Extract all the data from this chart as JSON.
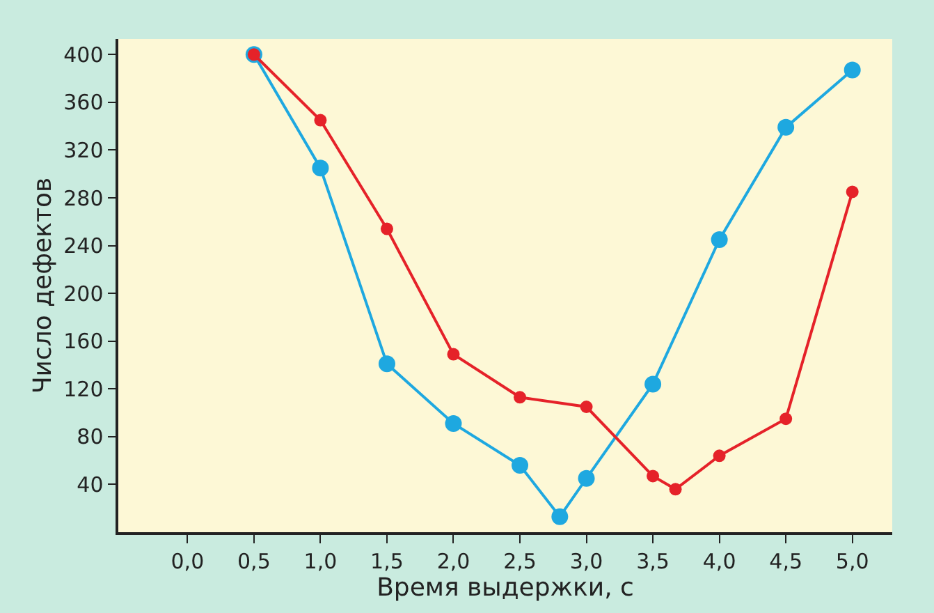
{
  "chart_data": {
    "type": "line",
    "xlabel": "Время выдержки, с",
    "ylabel": "Число дефектов",
    "xlim": [
      -0.52,
      5.3
    ],
    "ylim": [
      0,
      413
    ],
    "xticks": [
      {
        "value": 0,
        "label": "0,0"
      },
      {
        "value": 0.5,
        "label": "0,5"
      },
      {
        "value": 1,
        "label": "1,0"
      },
      {
        "value": 1.5,
        "label": "1,5"
      },
      {
        "value": 2,
        "label": "2,0"
      },
      {
        "value": 2.5,
        "label": "2,5"
      },
      {
        "value": 3,
        "label": "3,0"
      },
      {
        "value": 3.5,
        "label": "3,5"
      },
      {
        "value": 4,
        "label": "4,0"
      },
      {
        "value": 4.5,
        "label": "4,5"
      },
      {
        "value": 5,
        "label": "5,0"
      }
    ],
    "yticks": [
      40,
      80,
      120,
      160,
      200,
      240,
      280,
      320,
      360,
      400
    ],
    "grid": false,
    "marker": "circle",
    "line_style": "solid",
    "series": [
      {
        "color": "#1ea8e0",
        "x": [
          0.5,
          1.0,
          1.5,
          2.0,
          2.5,
          2.8,
          3.0,
          3.5,
          4.0,
          4.5,
          5.0
        ],
        "values": [
          400,
          305,
          141,
          91,
          56,
          13,
          45,
          124,
          245,
          339,
          387
        ]
      },
      {
        "color": "#e52229",
        "x": [
          0.5,
          1.0,
          1.5,
          2.0,
          2.5,
          3.0,
          3.5,
          3.67,
          4.0,
          4.5,
          5.0
        ],
        "values": [
          400,
          345,
          254,
          149,
          113,
          105,
          47,
          36,
          64,
          95,
          285
        ]
      }
    ]
  }
}
